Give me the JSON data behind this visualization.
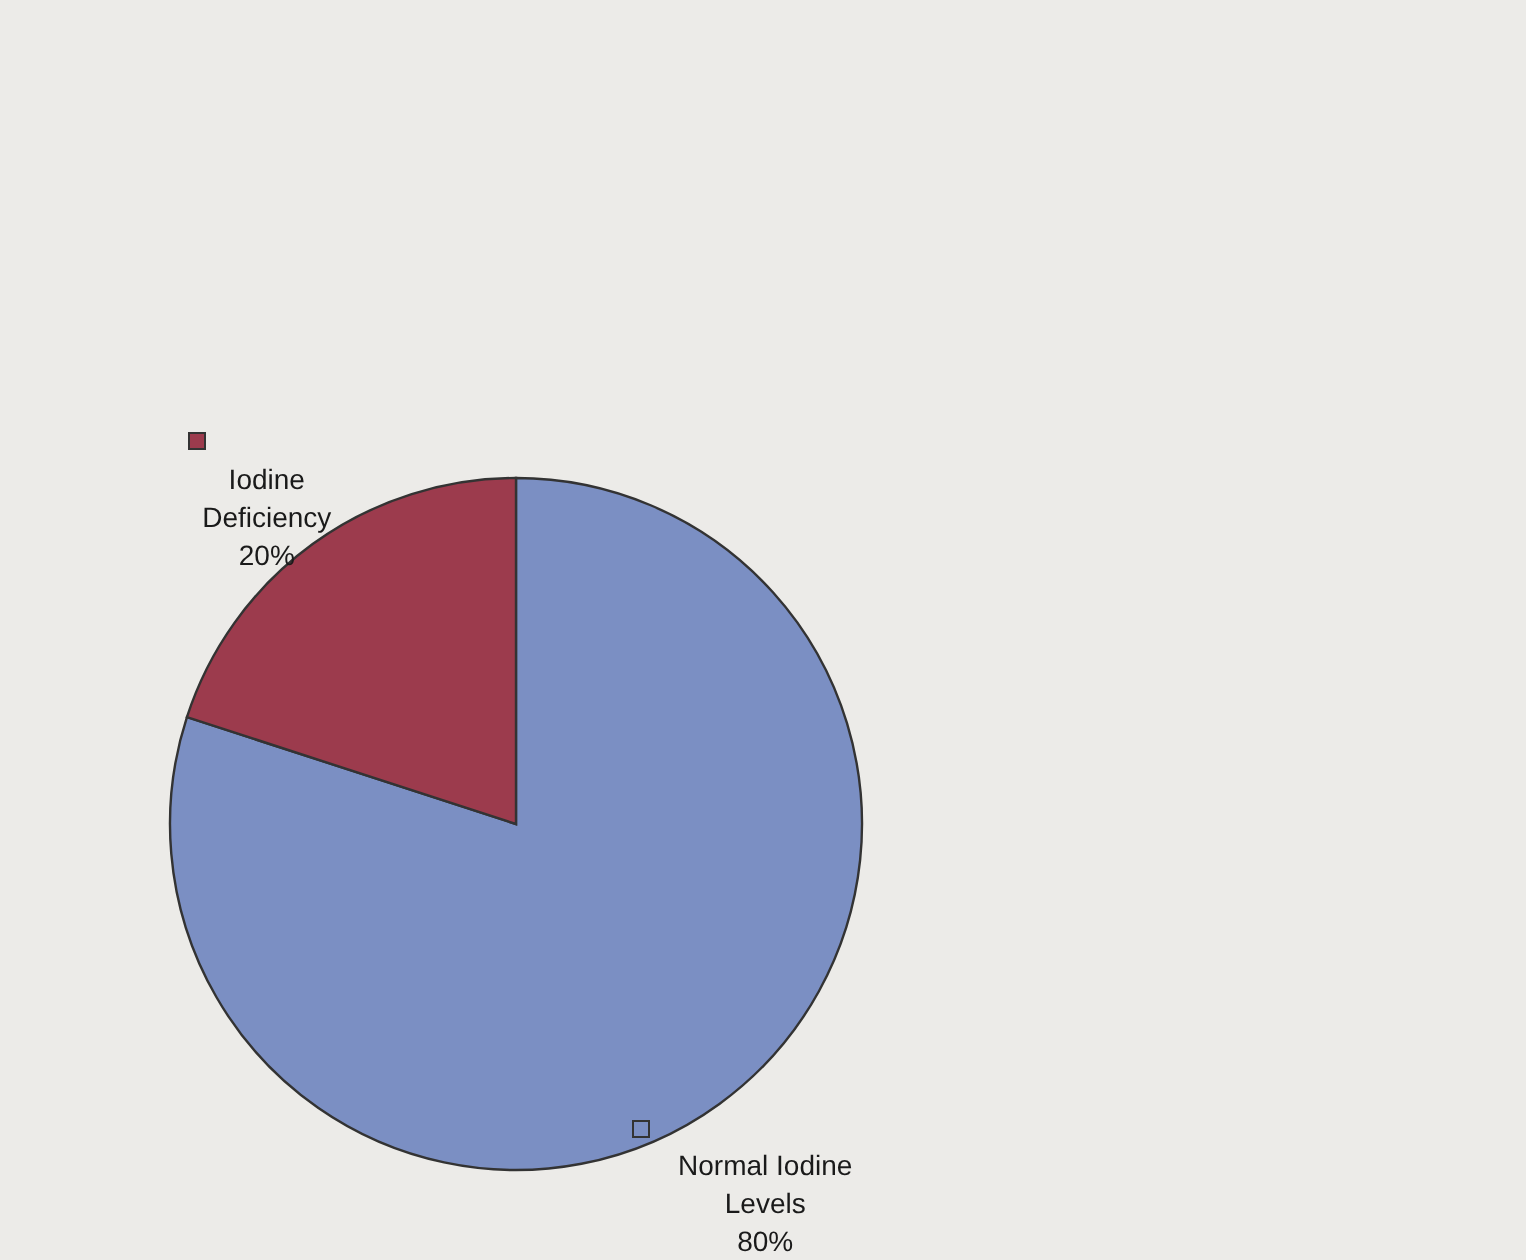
{
  "chart_data": {
    "type": "pie",
    "categories": [
      "Normal Iodine Levels",
      "Iodine Deficiency"
    ],
    "values": [
      80,
      20
    ],
    "colors": [
      "#7b8fc3",
      "#9c3b4d"
    ],
    "value_labels": [
      "80%",
      "20%"
    ]
  }
}
